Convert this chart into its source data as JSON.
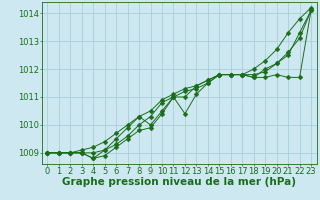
{
  "background_color": "#cde8f0",
  "grid_color": "#aacfdb",
  "line_color": "#1a6e1a",
  "marker_color": "#1a6e1a",
  "xlabel": "Graphe pression niveau de la mer (hPa)",
  "ylim": [
    1008.6,
    1014.4
  ],
  "xlim": [
    -0.5,
    23.5
  ],
  "yticks": [
    1009,
    1010,
    1011,
    1012,
    1013,
    1014
  ],
  "xticks": [
    0,
    1,
    2,
    3,
    4,
    5,
    6,
    7,
    8,
    9,
    10,
    11,
    12,
    13,
    14,
    15,
    16,
    17,
    18,
    19,
    20,
    21,
    22,
    23
  ],
  "lines": [
    {
      "x": [
        0,
        1,
        2,
        3,
        4,
        5,
        6,
        7,
        8,
        9,
        10,
        11,
        12,
        13,
        14,
        15,
        16,
        17,
        18,
        19,
        20,
        21,
        22,
        23
      ],
      "y": [
        1009.0,
        1009.0,
        1009.0,
        1009.0,
        1009.0,
        1009.1,
        1009.3,
        1009.6,
        1010.0,
        1010.3,
        1010.8,
        1011.0,
        1011.2,
        1011.3,
        1011.5,
        1011.8,
        1011.8,
        1011.8,
        1012.0,
        1012.3,
        1012.7,
        1013.3,
        1013.8,
        1014.2
      ]
    },
    {
      "x": [
        0,
        1,
        2,
        3,
        4,
        5,
        6,
        7,
        8,
        9,
        10,
        11,
        12,
        13,
        14,
        15,
        16,
        17,
        18,
        19,
        20,
        21,
        22,
        23
      ],
      "y": [
        1009.0,
        1009.0,
        1009.0,
        1009.1,
        1009.2,
        1009.4,
        1009.7,
        1010.0,
        1010.3,
        1010.5,
        1010.9,
        1011.1,
        1011.3,
        1011.4,
        1011.6,
        1011.8,
        1011.8,
        1011.8,
        1011.8,
        1011.9,
        1012.2,
        1012.6,
        1013.1,
        1014.1
      ]
    },
    {
      "x": [
        0,
        1,
        2,
        3,
        4,
        5,
        6,
        7,
        8,
        9,
        10,
        11,
        12,
        13,
        14,
        15,
        16,
        17,
        18,
        19,
        20,
        21,
        22,
        23
      ],
      "y": [
        1009.0,
        1009.0,
        1009.0,
        1009.0,
        1008.8,
        1009.1,
        1009.5,
        1009.9,
        1010.3,
        1010.0,
        1010.5,
        1011.0,
        1011.0,
        1011.4,
        1011.6,
        1011.8,
        1011.8,
        1011.8,
        1011.7,
        1011.7,
        1011.8,
        1011.7,
        1011.7,
        1014.1
      ]
    },
    {
      "x": [
        0,
        1,
        2,
        3,
        4,
        5,
        6,
        7,
        8,
        9,
        10,
        11,
        12,
        13,
        14,
        15,
        16,
        17,
        18,
        19,
        20,
        21,
        22,
        23
      ],
      "y": [
        1009.0,
        1009.0,
        1009.0,
        1009.0,
        1008.8,
        1008.9,
        1009.2,
        1009.5,
        1009.8,
        1009.9,
        1010.4,
        1011.0,
        1010.4,
        1011.1,
        1011.5,
        1011.8,
        1011.8,
        1011.8,
        1011.7,
        1012.0,
        1012.2,
        1012.5,
        1013.3,
        1014.1
      ]
    }
  ],
  "title_fontsize": 7.5,
  "tick_fontsize": 6,
  "title_color": "#1a6e1a",
  "tick_color": "#1a6e1a",
  "axis_color": "#1a6e1a",
  "markersize": 2.5
}
